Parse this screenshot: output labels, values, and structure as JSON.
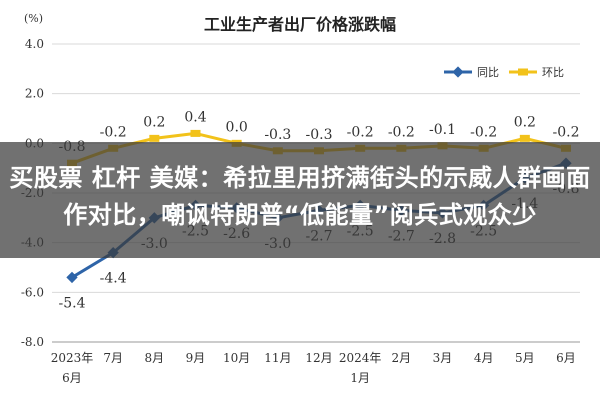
{
  "chart_data": {
    "type": "line",
    "title": "工业生产者出厂价格涨跌幅",
    "y_unit": "(%)",
    "ylim": [
      -8.0,
      4.0
    ],
    "y_ticks": [
      "4.0",
      "2.0",
      "0.0",
      "-2.0",
      "-4.0",
      "-6.0",
      "-8.0"
    ],
    "y_tick_values": [
      4,
      2,
      0,
      -2,
      -4,
      -6,
      -8
    ],
    "categories": [
      [
        "2023年",
        "6月"
      ],
      [
        "7月"
      ],
      [
        "8月"
      ],
      [
        "9月"
      ],
      [
        "10月"
      ],
      [
        "11月"
      ],
      [
        "12月"
      ],
      [
        "2024年",
        "1月"
      ],
      [
        "2月"
      ],
      [
        "3月"
      ],
      [
        "4月"
      ],
      [
        "5月"
      ],
      [
        "6月"
      ]
    ],
    "legend_position": "top-right",
    "grid": true,
    "series": [
      {
        "name": "同比",
        "color": "#2e64a8",
        "values": [
          -5.4,
          -4.4,
          -3.0,
          -2.5,
          -2.6,
          -3.0,
          -2.7,
          -2.5,
          -2.7,
          -2.8,
          -2.5,
          -1.4,
          -0.8
        ],
        "labels": [
          "-5.4",
          "-4.4",
          "-3.0",
          "-2.5",
          "-2.6",
          "-3.0",
          "-2.7",
          "-2.5",
          "-2.7",
          "-2.8",
          "-2.5",
          "-1.4",
          "-0.8"
        ]
      },
      {
        "name": "环比",
        "color": "#f2c21a",
        "values": [
          -0.8,
          -0.2,
          0.2,
          0.4,
          0.0,
          -0.3,
          -0.3,
          -0.2,
          -0.2,
          -0.1,
          -0.2,
          0.2,
          -0.2
        ],
        "labels": [
          "-0.8",
          "-0.2",
          "0.2",
          "0.4",
          "0.0",
          "-0.3",
          "-0.3",
          "-0.2",
          "-0.2",
          "-0.1",
          "-0.2",
          "0.2",
          "-0.2"
        ]
      }
    ]
  },
  "overlay": {
    "text": "买股票 杠杆 美媒：希拉里用挤满街头的示威人群画面作对比，嘲讽特朗普“低能量”阅兵式观众少"
  }
}
